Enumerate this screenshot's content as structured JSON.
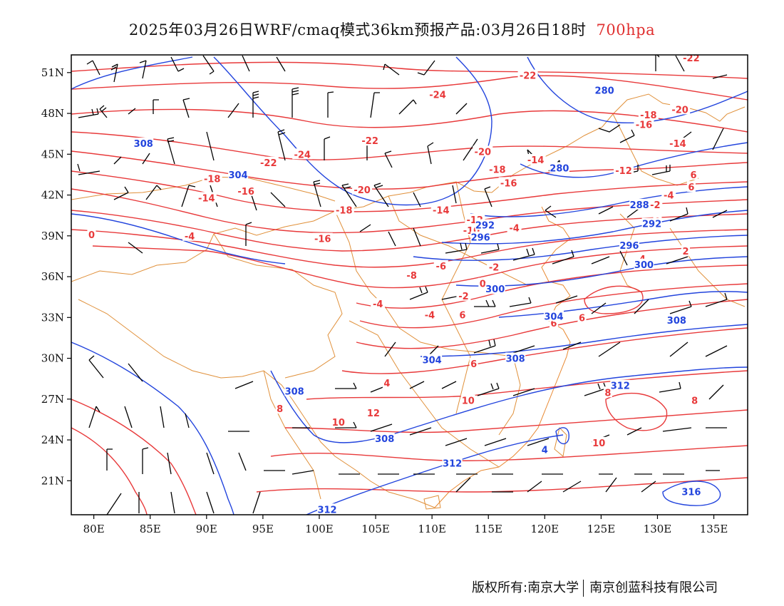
{
  "title": {
    "main": "2025年03月26日WRF/cmaq模式36km预报产品:03月26日18时",
    "level": "700hpa"
  },
  "credit": {
    "left": "版权所有:南京大学",
    "right": "南京创蓝科技有限公司"
  },
  "axes": {
    "lon_min": 78,
    "lon_max": 138,
    "lat_min": 18.5,
    "lat_max": 52.3,
    "lon_ticks": [
      {
        "value": 80,
        "label": "80E"
      },
      {
        "value": 85,
        "label": "85E"
      },
      {
        "value": 90,
        "label": "90E"
      },
      {
        "value": 95,
        "label": "95E"
      },
      {
        "value": 100,
        "label": "100E"
      },
      {
        "value": 105,
        "label": "105E"
      },
      {
        "value": 110,
        "label": "110E"
      },
      {
        "value": 115,
        "label": "115E"
      },
      {
        "value": 120,
        "label": "120E"
      },
      {
        "value": 125,
        "label": "125E"
      },
      {
        "value": 130,
        "label": "130E"
      },
      {
        "value": 135,
        "label": "135E"
      }
    ],
    "lat_ticks": [
      {
        "value": 21,
        "label": "21N"
      },
      {
        "value": 24,
        "label": "24N"
      },
      {
        "value": 27,
        "label": "27N"
      },
      {
        "value": 30,
        "label": "30N"
      },
      {
        "value": 33,
        "label": "33N"
      },
      {
        "value": 36,
        "label": "36N"
      },
      {
        "value": 39,
        "label": "39N"
      },
      {
        "value": 42,
        "label": "42N"
      },
      {
        "value": 45,
        "label": "45N"
      },
      {
        "value": 48,
        "label": "48N"
      },
      {
        "value": 51,
        "label": "51N"
      }
    ]
  },
  "colors": {
    "temperature": "#e8393a",
    "geopotential": "#2244dd",
    "boundary": "#e0903a",
    "wind": "#000000"
  },
  "temperature_labels": [
    {
      "text": "-22",
      "lon": 133,
      "lat": 52.1
    },
    {
      "text": "-22",
      "lon": 118.5,
      "lat": 50.8
    },
    {
      "text": "-24",
      "lon": 110.5,
      "lat": 49.4
    },
    {
      "text": "-18",
      "lon": 129.2,
      "lat": 47.9
    },
    {
      "text": "-20",
      "lon": 132,
      "lat": 48.3
    },
    {
      "text": "-16",
      "lon": 128.8,
      "lat": 47.2
    },
    {
      "text": "-14",
      "lon": 131.8,
      "lat": 45.8
    },
    {
      "text": "-22",
      "lon": 104.5,
      "lat": 46.0
    },
    {
      "text": "-20",
      "lon": 114.5,
      "lat": 45.2
    },
    {
      "text": "-24",
      "lon": 98.5,
      "lat": 45.0
    },
    {
      "text": "-22",
      "lon": 95.5,
      "lat": 44.4
    },
    {
      "text": "-14",
      "lon": 119.2,
      "lat": 44.6
    },
    {
      "text": "-18",
      "lon": 115.8,
      "lat": 43.9
    },
    {
      "text": "-12",
      "lon": 127.0,
      "lat": 43.8
    },
    {
      "text": "-18",
      "lon": 90.5,
      "lat": 43.2
    },
    {
      "text": "-16",
      "lon": 116.8,
      "lat": 42.9
    },
    {
      "text": "6",
      "lon": 133.2,
      "lat": 43.5
    },
    {
      "text": "-20",
      "lon": 103.8,
      "lat": 42.4
    },
    {
      "text": "-16",
      "lon": 93.5,
      "lat": 42.3
    },
    {
      "text": "6",
      "lon": 133.0,
      "lat": 42.6
    },
    {
      "text": "-14",
      "lon": 90.0,
      "lat": 41.8
    },
    {
      "text": "-4",
      "lon": 131.0,
      "lat": 42.0
    },
    {
      "text": "-2",
      "lon": 129.8,
      "lat": 41.3
    },
    {
      "text": "-18",
      "lon": 102.2,
      "lat": 40.9
    },
    {
      "text": "-14",
      "lon": 110.8,
      "lat": 40.9
    },
    {
      "text": "0",
      "lon": 130.0,
      "lat": 40.1
    },
    {
      "text": "-12",
      "lon": 113.8,
      "lat": 40.2
    },
    {
      "text": "-4",
      "lon": 117.3,
      "lat": 39.6
    },
    {
      "text": "-10",
      "lon": 113.5,
      "lat": 39.4
    },
    {
      "text": "0",
      "lon": 79.8,
      "lat": 39.1
    },
    {
      "text": "-4",
      "lon": 88.5,
      "lat": 39.0
    },
    {
      "text": "-16",
      "lon": 100.3,
      "lat": 38.8
    },
    {
      "text": "2",
      "lon": 132.5,
      "lat": 37.9
    },
    {
      "text": "-4",
      "lon": 128.5,
      "lat": 37.3
    },
    {
      "text": "-6",
      "lon": 110.8,
      "lat": 36.8
    },
    {
      "text": "-2",
      "lon": 115.5,
      "lat": 36.7
    },
    {
      "text": "-8",
      "lon": 108.2,
      "lat": 36.1
    },
    {
      "text": "0",
      "lon": 114.5,
      "lat": 35.5
    },
    {
      "text": "-2",
      "lon": 112.8,
      "lat": 34.6
    },
    {
      "text": "-4",
      "lon": 105.2,
      "lat": 34.0
    },
    {
      "text": "-4",
      "lon": 109.8,
      "lat": 33.2
    },
    {
      "text": "6",
      "lon": 112.7,
      "lat": 33.2
    },
    {
      "text": "6",
      "lon": 123.3,
      "lat": 33.0
    },
    {
      "text": "6",
      "lon": 120.8,
      "lat": 32.6
    },
    {
      "text": "6",
      "lon": 113.7,
      "lat": 29.6
    },
    {
      "text": "4",
      "lon": 106.0,
      "lat": 28.2
    },
    {
      "text": "8",
      "lon": 125.6,
      "lat": 27.5
    },
    {
      "text": "8",
      "lon": 96.5,
      "lat": 26.3
    },
    {
      "text": "10",
      "lon": 113.2,
      "lat": 26.9
    },
    {
      "text": "8",
      "lon": 133.3,
      "lat": 26.9
    },
    {
      "text": "12",
      "lon": 104.8,
      "lat": 26.0
    },
    {
      "text": "10",
      "lon": 101.7,
      "lat": 25.3
    },
    {
      "text": "10",
      "lon": 124.8,
      "lat": 23.8
    }
  ],
  "geopotential_labels": [
    {
      "text": "280",
      "lon": 125.3,
      "lat": 49.7
    },
    {
      "text": "308",
      "lon": 84.4,
      "lat": 45.8
    },
    {
      "text": "304",
      "lon": 92.8,
      "lat": 43.5
    },
    {
      "text": "280",
      "lon": 121.3,
      "lat": 44.0
    },
    {
      "text": "288",
      "lon": 128.4,
      "lat": 41.3
    },
    {
      "text": "292",
      "lon": 114.7,
      "lat": 39.8
    },
    {
      "text": "292",
      "lon": 129.5,
      "lat": 39.9
    },
    {
      "text": "296",
      "lon": 114.3,
      "lat": 38.9
    },
    {
      "text": "296",
      "lon": 127.5,
      "lat": 38.3
    },
    {
      "text": "300",
      "lon": 128.8,
      "lat": 36.9
    },
    {
      "text": "300",
      "lon": 115.6,
      "lat": 35.1
    },
    {
      "text": "304",
      "lon": 120.8,
      "lat": 33.1
    },
    {
      "text": "308",
      "lon": 131.7,
      "lat": 32.8
    },
    {
      "text": "304",
      "lon": 110.0,
      "lat": 29.9
    },
    {
      "text": "308",
      "lon": 117.4,
      "lat": 30.0
    },
    {
      "text": "308",
      "lon": 97.8,
      "lat": 27.6
    },
    {
      "text": "312",
      "lon": 126.7,
      "lat": 28.0
    },
    {
      "text": "308",
      "lon": 105.8,
      "lat": 24.1
    },
    {
      "text": "312",
      "lon": 111.8,
      "lat": 22.3
    },
    {
      "text": "316",
      "lon": 133.0,
      "lat": 20.2
    },
    {
      "text": "312",
      "lon": 100.7,
      "lat": 18.9
    },
    {
      "text": "4",
      "lon": 120.0,
      "lat": 23.3
    }
  ]
}
